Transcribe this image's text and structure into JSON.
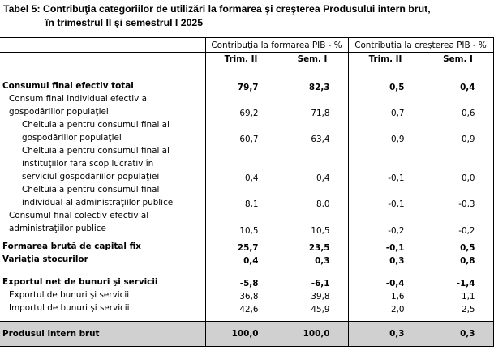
{
  "title": {
    "line1": "Tabel 5: Contribuţia categoriilor de utilizări la formarea şi creşterea Produsului intern brut,",
    "line2": "în trimestrul II şi semestrul I 2025"
  },
  "header": {
    "group1": "Contribuţia la formarea PIB - %",
    "group2": "Contribuţia la creşterea PIB - %",
    "sub": [
      "Trim. II",
      "Sem. I",
      "Trim. II",
      "Sem. I"
    ]
  },
  "rows": [
    {
      "label": [
        "Consumul final  efectiv total"
      ],
      "values": [
        "79,7",
        "82,3",
        "0,5",
        "0,4"
      ]
    },
    {
      "label": [
        "Consum final individual efectiv al",
        "gospodăriilor populaţiei"
      ],
      "values": [
        "69,2",
        "71,8",
        "0,7",
        "0,6"
      ]
    },
    {
      "label": [
        "Cheltuiala pentru consumul final al",
        "gospodăriilor populaţiei"
      ],
      "values": [
        "60,7",
        "63,4",
        "0,9",
        "0,9"
      ]
    },
    {
      "label": [
        "Cheltuiala pentru consumul final al",
        "instituţiilor fără scop lucrativ în",
        "serviciul gospodăriilor populaţiei"
      ],
      "values": [
        "0,4",
        "0,4",
        "-0,1",
        "0,0"
      ]
    },
    {
      "label": [
        "Cheltuiala pentru consumul final",
        "individual al administraţiilor publice"
      ],
      "values": [
        "8,1",
        "8,0",
        "-0,1",
        "-0,3"
      ]
    },
    {
      "label": [
        "Consumul final colectiv efectiv al",
        "administraţiilor publice"
      ],
      "values": [
        "10,5",
        "10,5",
        "-0,2",
        "-0,2"
      ]
    },
    {
      "label": [
        "Formarea brută de capital fix"
      ],
      "values": [
        "25,7",
        "23,5",
        "-0,1",
        "0,5"
      ]
    },
    {
      "label": [
        "Variaţia stocurilor"
      ],
      "values": [
        "0,4",
        "0,3",
        "0,3",
        "0,8"
      ]
    },
    {
      "label": [
        "Exportul net de bunuri şi servicii"
      ],
      "values": [
        "-5,8",
        "-6,1",
        "-0,4",
        "-1,4"
      ]
    },
    {
      "label": [
        "Exportul de bunuri şi servicii"
      ],
      "values": [
        "36,8",
        "39,8",
        "1,6",
        "1,1"
      ]
    },
    {
      "label": [
        "Importul de bunuri şi servicii"
      ],
      "values": [
        "42,6",
        "45,9",
        "2,0",
        "2,5"
      ]
    },
    {
      "label": [
        "Produsul intern brut"
      ],
      "values": [
        "100,0",
        "100,0",
        "0,3",
        "0,3"
      ]
    }
  ]
}
